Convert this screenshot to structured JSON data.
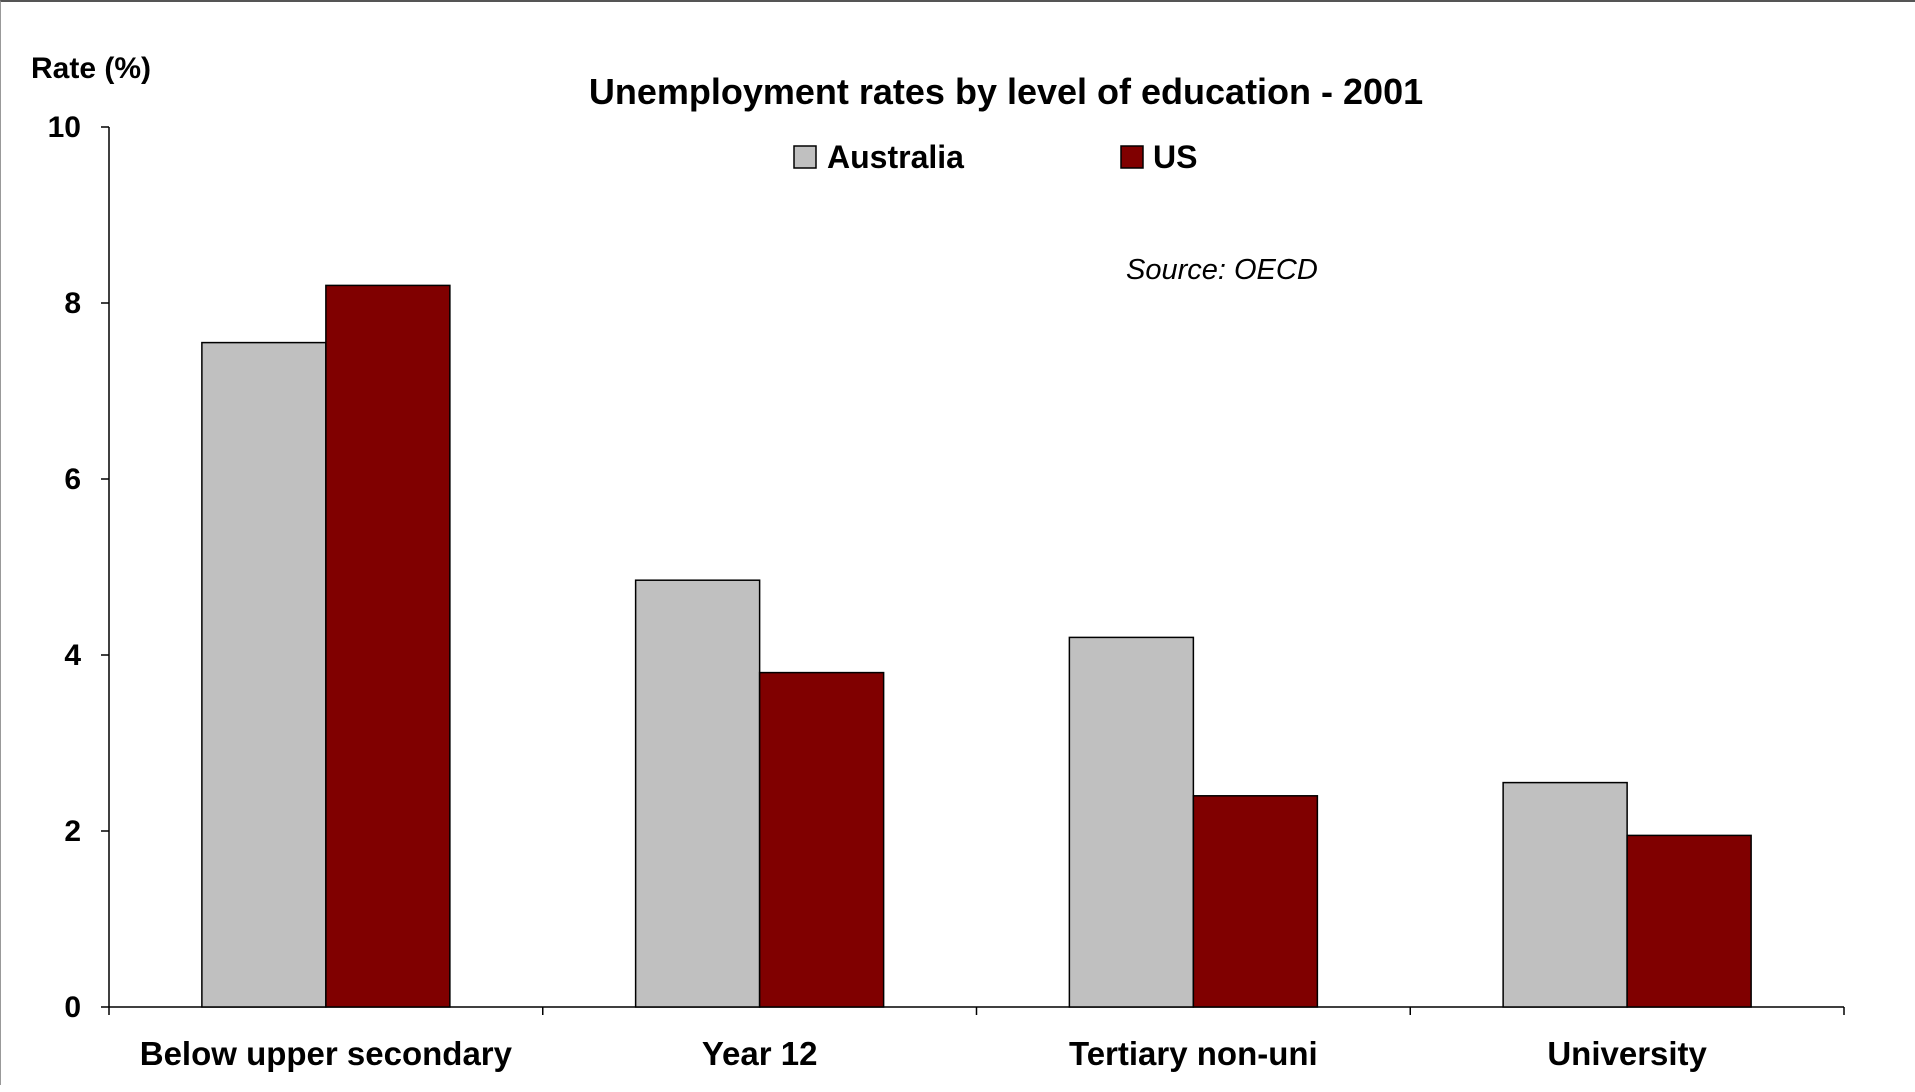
{
  "chart_data": {
    "type": "bar",
    "title": "Unemployment rates by level of education - 2001",
    "ylabel": "Rate (%)",
    "xlabel": "",
    "annotation": "Source: OECD",
    "categories": [
      "Below upper secondary",
      "Year 12",
      "Tertiary non-uni",
      "University"
    ],
    "series": [
      {
        "name": "Australia",
        "color": "#c0c0c0",
        "values": [
          7.55,
          4.85,
          4.2,
          2.55
        ]
      },
      {
        "name": "US",
        "color": "#800000",
        "values": [
          8.2,
          3.8,
          2.4,
          1.95
        ]
      }
    ],
    "ylim": [
      0,
      10
    ],
    "yticks": [
      "0",
      "2",
      "4",
      "6",
      "8",
      "10"
    ],
    "legend_position": "top-center",
    "grid": false
  }
}
